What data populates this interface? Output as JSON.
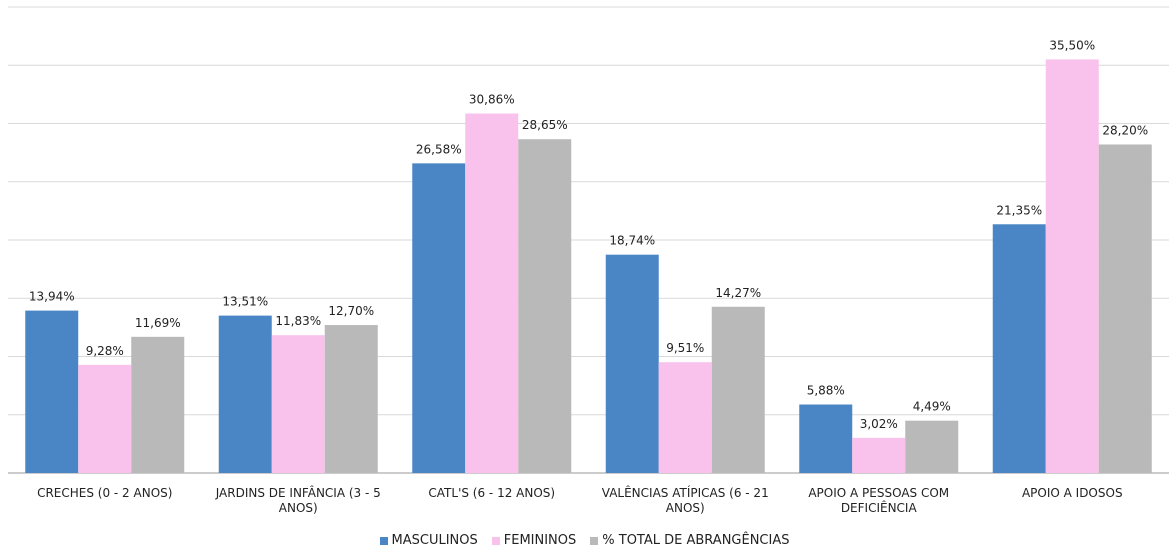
{
  "chart_data": {
    "type": "bar",
    "categories": [
      "CRECHES (0 - 2 ANOS)",
      "JARDINS DE INFÂNCIA (3 - 5 ANOS)",
      "CATL'S (6 - 12 ANOS)",
      "VALÊNCIAS ATÍPICAS (6 - 21 ANOS)",
      "APOIO A PESSOAS COM DEFICIÊNCIA",
      "APOIO A IDOSOS"
    ],
    "series": [
      {
        "name": "MASCULINOS",
        "color": "#4a86c5",
        "values": [
          13.94,
          13.51,
          26.58,
          18.74,
          5.88,
          21.35
        ],
        "value_labels": [
          "13,94%",
          "13,51%",
          "26,58%",
          "18,74%",
          "5,88%",
          "21,35%"
        ]
      },
      {
        "name": "FEMININOS",
        "color": "#f8c2ec",
        "values": [
          9.28,
          11.83,
          30.86,
          9.51,
          3.02,
          35.5
        ],
        "value_labels": [
          "9,28%",
          "11,83%",
          "30,86%",
          "9,51%",
          "3,02%",
          "35,50%"
        ]
      },
      {
        "name": "% TOTAL DE ABRANGÊNCIAS",
        "color": "#b9b9b9",
        "values": [
          11.69,
          12.7,
          28.65,
          14.27,
          4.49,
          28.2
        ],
        "value_labels": [
          "11,69%",
          "12,70%",
          "28,65%",
          "14,27%",
          "4,49%",
          "28,20%"
        ]
      }
    ],
    "ylim": [
      0,
      40
    ],
    "yticks": [
      0,
      5,
      10,
      15,
      20,
      25,
      30,
      35,
      40
    ],
    "grid": true,
    "legend": "bottom"
  }
}
